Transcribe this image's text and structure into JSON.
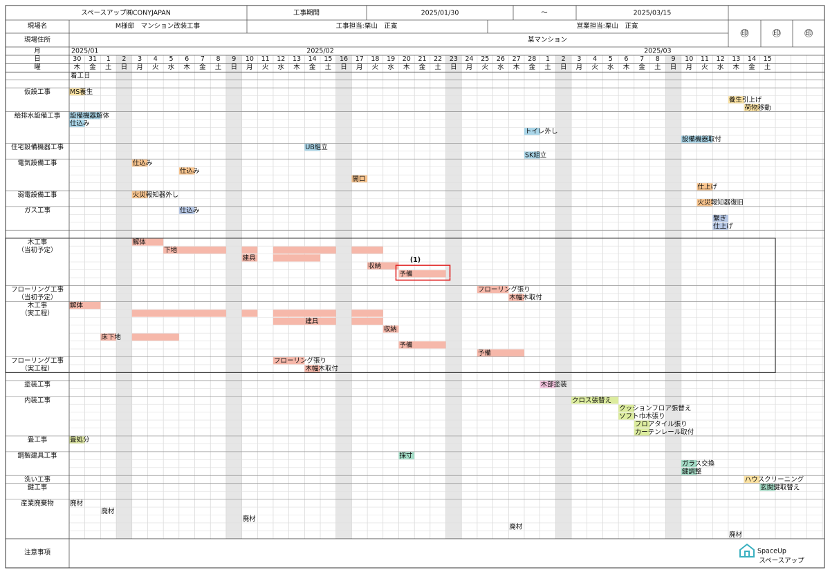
{
  "header": {
    "company": "スペースアップ㈱CONYJAPAN",
    "period_label": "工事期間",
    "start_date": "2025/01/30",
    "tilde": "～",
    "end_date": "2025/03/15",
    "site_name_label": "現場名",
    "site_name": "M様邸　マンション改装工事",
    "construction_manager": "工事担当:栗山　正寛",
    "sales_manager": "営業担当:栗山　正寛",
    "address_label": "現場住所",
    "address": "某マンション",
    "stamps": [
      "印",
      "印",
      "印"
    ]
  },
  "calendar": {
    "row_labels": [
      "月",
      "日",
      "曜"
    ],
    "months": [
      "2025/01",
      "2025/02",
      "2025/03"
    ],
    "days": [
      30,
      31,
      1,
      2,
      3,
      4,
      5,
      6,
      7,
      8,
      9,
      10,
      11,
      12,
      13,
      14,
      15,
      16,
      17,
      18,
      19,
      20,
      21,
      22,
      23,
      24,
      25,
      26,
      27,
      28,
      1,
      2,
      3,
      4,
      5,
      6,
      7,
      8,
      9,
      10,
      11,
      12,
      13,
      14,
      15
    ],
    "weekdays": [
      "木",
      "金",
      "土",
      "日",
      "月",
      "火",
      "水",
      "木",
      "金",
      "土",
      "日",
      "月",
      "火",
      "水",
      "木",
      "金",
      "土",
      "日",
      "月",
      "火",
      "水",
      "木",
      "金",
      "土",
      "日",
      "月",
      "火",
      "水",
      "木",
      "金",
      "土",
      "日",
      "月",
      "火",
      "水",
      "木",
      "金",
      "土",
      "日",
      "月",
      "火",
      "水",
      "木",
      "金",
      "土"
    ],
    "start_marker": "着工日"
  },
  "sections": [
    {
      "rows": [
        []
      ]
    },
    {
      "label": "仮設工事",
      "color": "#fbe2a2",
      "rows": [
        [
          {
            "label": "MS養生",
            "start": "2025/01/30"
          }
        ],
        [
          {
            "label": "養生引上げ",
            "start": "2025/03/13"
          }
        ],
        [
          {
            "label": "荷物移動",
            "start": "2025/03/14"
          }
        ]
      ]
    },
    {
      "label": "給排水設備工事",
      "color": "#a9d5e8",
      "rows": [
        [
          {
            "label": "設備機器解体",
            "start": "2025/01/30",
            "end": "2025/01/31"
          }
        ],
        [
          {
            "label": "仕込み",
            "start": "2025/01/30"
          }
        ],
        [
          {
            "label": "トイレ外し",
            "start": "2025/02/28"
          }
        ],
        [
          {
            "label": "設備機器取付",
            "start": "2025/03/10",
            "end": "2025/03/11"
          }
        ]
      ]
    },
    {
      "label": "住宅設備機器工事",
      "color": "#a9d5e8",
      "rows": [
        [
          {
            "label": "UB組立",
            "start": "2025/02/14"
          }
        ],
        [
          {
            "label": "SK組立",
            "start": "2025/02/28"
          }
        ]
      ]
    },
    {
      "label": "電気設備工事",
      "color": "#f8c48e",
      "rows": [
        [
          {
            "label": "仕込み",
            "start": "2025/02/03"
          }
        ],
        [
          {
            "label": "仕込み",
            "start": "2025/02/06"
          }
        ],
        [
          {
            "label": "開口",
            "start": "2025/02/17"
          }
        ],
        [
          {
            "label": "仕上げ",
            "start": "2025/03/11"
          }
        ]
      ]
    },
    {
      "label": "弱電設備工事",
      "color": "#f8c48e",
      "rows": [
        [
          {
            "label": "火災報知器外し",
            "start": "2025/02/03"
          }
        ],
        [
          {
            "label": "火災報知器復旧",
            "start": "2025/03/11"
          }
        ]
      ]
    },
    {
      "label": "ガス工事",
      "color": "#b7c8e6",
      "rows": [
        [
          {
            "label": "仕込み",
            "start": "2025/02/06"
          }
        ],
        [
          {
            "label": "繋ぎ",
            "start": "2025/03/12"
          }
        ],
        [
          {
            "label": "仕上げ",
            "start": "2025/03/12"
          }
        ]
      ]
    },
    {
      "rows": [
        []
      ]
    },
    {
      "label": "木工事",
      "sublabel": "（当初予定）",
      "color": "#f6b8aa",
      "rows": [
        [
          {
            "label": "解体",
            "start": "2025/02/03",
            "end": "2025/02/04"
          }
        ],
        [
          {
            "label": "下地",
            "start": "2025/02/05",
            "end": "2025/02/08"
          },
          {
            "start": "2025/02/10"
          },
          {
            "start": "2025/02/12",
            "end": "2025/02/15"
          },
          {
            "start": "2025/02/17",
            "end": "2025/02/18"
          }
        ],
        [
          {
            "label": "建具",
            "start": "2025/02/10"
          },
          {
            "start": "2025/02/12",
            "end": "2025/02/14"
          }
        ],
        [
          {
            "label": "収納",
            "start": "2025/02/18",
            "end": "2025/02/19"
          }
        ],
        [
          {
            "label": "予備",
            "start": "2025/02/20",
            "end": "2025/02/22",
            "annotation": "(1)"
          }
        ],
        []
      ]
    },
    {
      "label": "フローリング工事",
      "sublabel": "（当初予定）",
      "color": "#f6b8aa",
      "rows": [
        [
          {
            "label": "フローリング張り",
            "start": "2025/02/25",
            "end": "2025/02/26"
          }
        ],
        [
          {
            "label": "木幅木取付",
            "start": "2025/02/27"
          }
        ]
      ]
    },
    {
      "label": "木工事",
      "sublabel": "（実工程）",
      "color": "#f6b8aa",
      "rows": [
        [
          {
            "label": "解体",
            "start": "2025/01/30",
            "end": "2025/01/31"
          }
        ],
        [
          {
            "start": "2025/02/03",
            "end": "2025/02/08"
          },
          {
            "start": "2025/02/10"
          },
          {
            "start": "2025/02/12",
            "end": "2025/02/15"
          },
          {
            "start": "2025/02/17",
            "end": "2025/02/18"
          }
        ],
        [
          {
            "start": "2025/02/12",
            "end": "2025/02/13"
          },
          {
            "label": "建具",
            "start": "2025/02/14",
            "end": "2025/02/15"
          },
          {
            "start": "2025/02/17",
            "end": "2025/02/18"
          }
        ],
        [
          {
            "label": "収納",
            "start": "2025/02/19"
          }
        ],
        [
          {
            "label": "床下地",
            "start": "2025/02/01"
          },
          {
            "start": "2025/02/03",
            "end": "2025/02/05"
          }
        ],
        [
          {
            "label": "予備",
            "start": "2025/02/20",
            "end": "2025/02/22"
          }
        ],
        [
          {
            "label": "予備",
            "start": "2025/02/25",
            "end": "2025/02/27"
          }
        ]
      ]
    },
    {
      "label": "フローリング工事",
      "sublabel": "（実工程）",
      "color": "#f6b8aa",
      "rows": [
        [
          {
            "label": "フローリング張り",
            "start": "2025/02/12",
            "end": "2025/02/13"
          }
        ],
        [
          {
            "label": "木幅木取付",
            "start": "2025/02/14"
          }
        ]
      ]
    },
    {
      "rows": [
        []
      ]
    },
    {
      "label": "塗装工事",
      "color": "#f4c3de",
      "rows": [
        [
          {
            "label": "木部塗装",
            "start": "2025/03/01"
          }
        ],
        []
      ]
    },
    {
      "label": "内装工事",
      "color": "#dcec9e",
      "rows": [
        [
          {
            "label": "クロス張替え",
            "start": "2025/03/03",
            "end": "2025/03/05"
          }
        ],
        [
          {
            "label": "クッションフロア張替え",
            "start": "2025/03/06"
          }
        ],
        [
          {
            "label": "ソフト巾木張り",
            "start": "2025/03/06"
          }
        ],
        [
          {
            "label": "フロアタイル張り",
            "start": "2025/03/07"
          }
        ],
        [
          {
            "label": "カーテンレール取付",
            "start": "2025/03/07"
          }
        ]
      ]
    },
    {
      "label": "畳工事",
      "color": "#dfe8a4",
      "rows": [
        [
          {
            "label": "畳処分",
            "start": "2025/01/30"
          }
        ],
        []
      ]
    },
    {
      "label": "鋼製建具工事",
      "color": "#a3dcc6",
      "rows": [
        [
          {
            "label": "採寸",
            "start": "2025/02/20"
          }
        ],
        [
          {
            "label": "ガラス交換",
            "start": "2025/03/10"
          }
        ],
        [
          {
            "label": "鍵調整",
            "start": "2025/03/10"
          }
        ]
      ]
    },
    {
      "label": "洗い工事",
      "color": "#fbe2a2",
      "rows": [
        [
          {
            "label": "ハウスクリーニング",
            "start": "2025/03/14"
          }
        ]
      ]
    },
    {
      "label": "鍵工事",
      "color": "#a3dcc6",
      "rows": [
        [
          {
            "label": "玄関鍵取替え",
            "start": "2025/03/15"
          }
        ],
        []
      ]
    },
    {
      "label": "産業廃棄物",
      "rows": [
        [
          {
            "label": "廃材",
            "start": "2025/01/30"
          }
        ],
        [
          {
            "label": "廃材",
            "start": "2025/02/01"
          }
        ],
        [
          {
            "label": "廃材",
            "start": "2025/02/10"
          }
        ],
        [
          {
            "label": "廃材",
            "start": "2025/02/27"
          }
        ],
        [
          {
            "label": "廃材",
            "start": "2025/03/13"
          }
        ]
      ]
    }
  ],
  "notes_label": "注意事項",
  "logo": {
    "name": "SpaceUp",
    "sub": "スペースアップ"
  }
}
